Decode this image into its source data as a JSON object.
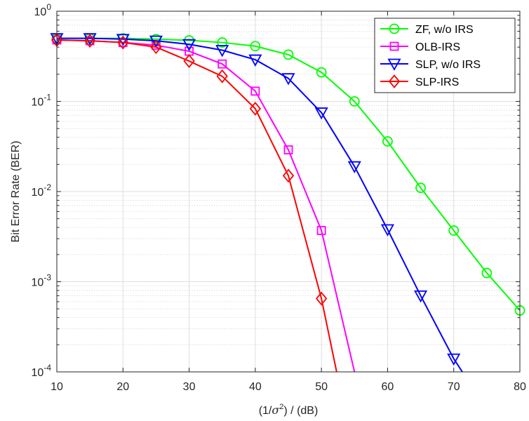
{
  "chart_data": {
    "type": "line",
    "title": "",
    "xlabel": "(1/σ²) / (dB)",
    "xlabel_parts": {
      "prefix": "(1/",
      "sym": "σ",
      "sup": "2",
      "suffix": ") / (dB)"
    },
    "ylabel": "Bit Error Rate (BER)",
    "xlim": [
      10,
      80
    ],
    "ylim": [
      0.0001,
      1
    ],
    "yscale": "log",
    "grid": true,
    "legend_position": "top-right",
    "x_ticks": [
      10,
      20,
      30,
      40,
      50,
      60,
      70,
      80
    ],
    "x_tick_labels": [
      "10",
      "20",
      "30",
      "40",
      "50",
      "60",
      "70",
      "80"
    ],
    "y_ticks": [
      {
        "value": 1,
        "base": "10",
        "exp": "0"
      },
      {
        "value": 0.1,
        "base": "10",
        "exp": "-1"
      },
      {
        "value": 0.01,
        "base": "10",
        "exp": "-2"
      },
      {
        "value": 0.001,
        "base": "10",
        "exp": "-3"
      },
      {
        "value": 0.0001,
        "base": "10",
        "exp": "-4"
      }
    ],
    "series": [
      {
        "name": "ZF, w/o IRS",
        "color": "#00ff00",
        "marker": "circle",
        "x": [
          10,
          15,
          20,
          25,
          30,
          35,
          40,
          45,
          50,
          55,
          60,
          65,
          70,
          75,
          80
        ],
        "y": [
          0.5,
          0.5,
          0.5,
          0.49,
          0.475,
          0.45,
          0.41,
          0.33,
          0.21,
          0.1,
          0.036,
          0.011,
          0.0037,
          0.00125,
          0.00048
        ]
      },
      {
        "name": "OLB-IRS",
        "color": "#ff00ff",
        "marker": "square",
        "x": [
          10,
          15,
          20,
          25,
          30,
          35,
          40,
          45,
          50,
          55
        ],
        "y": [
          0.48,
          0.47,
          0.45,
          0.42,
          0.36,
          0.26,
          0.13,
          0.029,
          0.0037,
          0.0001
        ]
      },
      {
        "name": "SLP, w/o IRS",
        "color": "#0000ff",
        "marker": "triangle-down",
        "x": [
          10,
          15,
          20,
          25,
          30,
          35,
          40,
          45,
          50,
          55,
          60,
          65,
          70,
          71.3
        ],
        "y": [
          0.5,
          0.5,
          0.49,
          0.47,
          0.43,
          0.37,
          0.29,
          0.18,
          0.075,
          0.019,
          0.0038,
          0.0007,
          0.00014,
          0.0001
        ]
      },
      {
        "name": "SLP-IRS",
        "color": "#ff0000",
        "marker": "diamond",
        "x": [
          10,
          15,
          20,
          25,
          30,
          35,
          40,
          45,
          50,
          52.3
        ],
        "y": [
          0.48,
          0.47,
          0.45,
          0.4,
          0.28,
          0.19,
          0.083,
          0.015,
          0.00065,
          0.0001
        ]
      }
    ]
  }
}
